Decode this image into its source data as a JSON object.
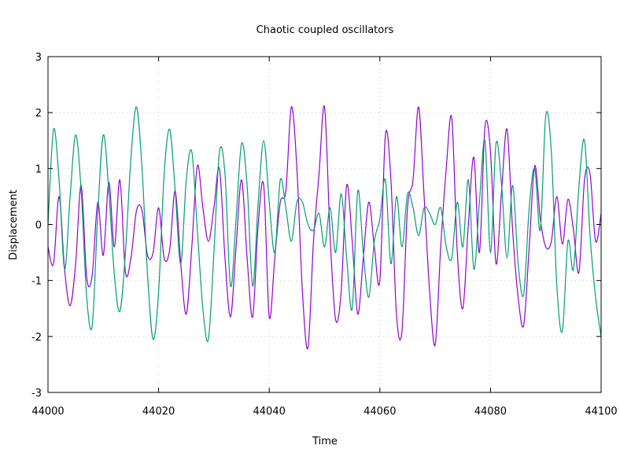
{
  "chart_data": {
    "type": "line",
    "title": "Chaotic coupled oscillators",
    "xlabel": "Time",
    "ylabel": "Displacement",
    "xlim": [
      44000,
      44100
    ],
    "ylim": [
      -3,
      3
    ],
    "xticks": [
      44000,
      44020,
      44040,
      44060,
      44080,
      44100
    ],
    "yticks": [
      -3,
      -2,
      -1,
      0,
      1,
      2,
      3
    ],
    "xtick_labels": [
      "44000",
      "44020",
      "44040",
      "44060",
      "44080",
      "44100"
    ],
    "ytick_labels": [
      "-3",
      "-2",
      "-1",
      "0",
      "1",
      "2",
      "3"
    ],
    "grid": true,
    "legend": "none",
    "series": [
      {
        "color": "#9400d3",
        "x": [
          44000,
          44001,
          44002,
          44003,
          44004,
          44005,
          44006,
          44007,
          44008,
          44009,
          44010,
          44011,
          44012,
          44013,
          44014,
          44015,
          44016,
          44017,
          44018,
          44019,
          44020,
          44021,
          44022,
          44023,
          44024,
          44025,
          44026,
          44027,
          44028,
          44029,
          44030,
          44031,
          44032,
          44033,
          44034,
          44035,
          44036,
          44037,
          44038,
          44039,
          44040,
          44041,
          44042,
          44043,
          44044,
          44045,
          44046,
          44047,
          44048,
          44049,
          44050,
          44051,
          44052,
          44053,
          44054,
          44055,
          44056,
          44057,
          44058,
          44059,
          44060,
          44061,
          44062,
          44063,
          44064,
          44065,
          44066,
          44067,
          44068,
          44069,
          44070,
          44071,
          44072,
          44073,
          44074,
          44075,
          44076,
          44077,
          44078,
          44079,
          44080,
          44081,
          44082,
          44083,
          44084,
          44085,
          44086,
          44087,
          44088,
          44089,
          44090,
          44091,
          44092,
          44093,
          44094,
          44095,
          44096,
          44097,
          44098,
          44099,
          44100
        ],
        "y": [
          -0.4,
          -0.7,
          0.5,
          -0.8,
          -1.45,
          -0.7,
          0.7,
          -0.95,
          -0.9,
          0.4,
          -0.55,
          0.75,
          -0.4,
          0.8,
          -0.85,
          -0.6,
          0.25,
          0.25,
          -0.55,
          -0.5,
          0.3,
          -0.6,
          -0.45,
          0.6,
          -0.7,
          -1.6,
          -0.4,
          1.05,
          0.3,
          -0.3,
          0.3,
          1.0,
          -0.6,
          -1.65,
          -0.4,
          0.8,
          -0.6,
          -1.65,
          0.0,
          0.7,
          -1.65,
          -0.6,
          0.4,
          0.6,
          2.1,
          1.0,
          -1.2,
          -2.2,
          -0.3,
          0.9,
          2.1,
          -0.2,
          -1.7,
          -1.2,
          0.7,
          -0.3,
          -1.6,
          -0.6,
          0.4,
          -0.4,
          -1.0,
          1.6,
          0.8,
          -1.6,
          -1.9,
          0.3,
          0.8,
          2.1,
          0.5,
          -1.2,
          -2.15,
          -0.4,
          1.0,
          1.9,
          -0.5,
          -1.5,
          0.0,
          1.2,
          -0.5,
          1.75,
          1.3,
          -0.7,
          0.6,
          1.7,
          -0.1,
          -1.3,
          -1.8,
          -0.4,
          1.05,
          0.1,
          -0.4,
          -0.3,
          0.5,
          -0.35,
          0.45,
          -0.1,
          -0.85,
          0.8,
          0.9,
          -0.3,
          0.2
        ]
      },
      {
        "color": "#009e73",
        "x": [
          44000,
          44001,
          44002,
          44003,
          44004,
          44005,
          44006,
          44007,
          44008,
          44009,
          44010,
          44011,
          44012,
          44013,
          44014,
          44015,
          44016,
          44017,
          44018,
          44019,
          44020,
          44021,
          44022,
          44023,
          44024,
          44025,
          44026,
          44027,
          44028,
          44029,
          44030,
          44031,
          44032,
          44033,
          44034,
          44035,
          44036,
          44037,
          44038,
          44039,
          44040,
          44041,
          44042,
          44043,
          44044,
          44045,
          44046,
          44047,
          44048,
          44049,
          44050,
          44051,
          44052,
          44053,
          44054,
          44055,
          44056,
          44057,
          44058,
          44059,
          44060,
          44061,
          44062,
          44063,
          44064,
          44065,
          44066,
          44067,
          44068,
          44069,
          44070,
          44071,
          44072,
          44073,
          44074,
          44075,
          44076,
          44077,
          44078,
          44079,
          44080,
          44081,
          44082,
          44083,
          44084,
          44085,
          44086,
          44087,
          44088,
          44089,
          44090,
          44091,
          44092,
          44093,
          44094,
          44095,
          44096,
          44097,
          44098,
          44099,
          44100
        ],
        "y": [
          0.0,
          1.7,
          0.8,
          -0.8,
          0.5,
          1.6,
          0.6,
          -1.3,
          -1.8,
          0.2,
          1.6,
          0.6,
          -0.9,
          -1.55,
          -0.5,
          1.2,
          2.1,
          1.0,
          -0.9,
          -2.05,
          -1.2,
          0.9,
          1.7,
          0.6,
          -0.7,
          0.8,
          1.3,
          -0.1,
          -1.5,
          -2.05,
          -0.5,
          1.3,
          0.9,
          -1.1,
          0.1,
          1.45,
          0.7,
          -1.1,
          0.4,
          1.5,
          0.4,
          -0.5,
          0.8,
          0.3,
          -0.3,
          0.4,
          0.4,
          0.0,
          -0.1,
          0.2,
          -0.4,
          0.3,
          -0.5,
          0.55,
          -0.6,
          -1.5,
          0.6,
          -0.5,
          -1.3,
          -0.3,
          0.1,
          0.8,
          -0.7,
          0.5,
          -0.4,
          0.55,
          0.3,
          -0.2,
          0.3,
          0.2,
          0.0,
          0.3,
          -0.4,
          -0.6,
          0.4,
          -0.4,
          0.8,
          -0.8,
          0.4,
          1.5,
          -0.5,
          1.45,
          0.7,
          -0.6,
          0.7,
          -0.7,
          -1.25,
          0.3,
          1.0,
          -0.1,
          1.95,
          1.3,
          -1.1,
          -1.9,
          -0.3,
          -0.8,
          0.7,
          1.5,
          -0.2,
          -1.3,
          -2.0
        ]
      }
    ]
  }
}
